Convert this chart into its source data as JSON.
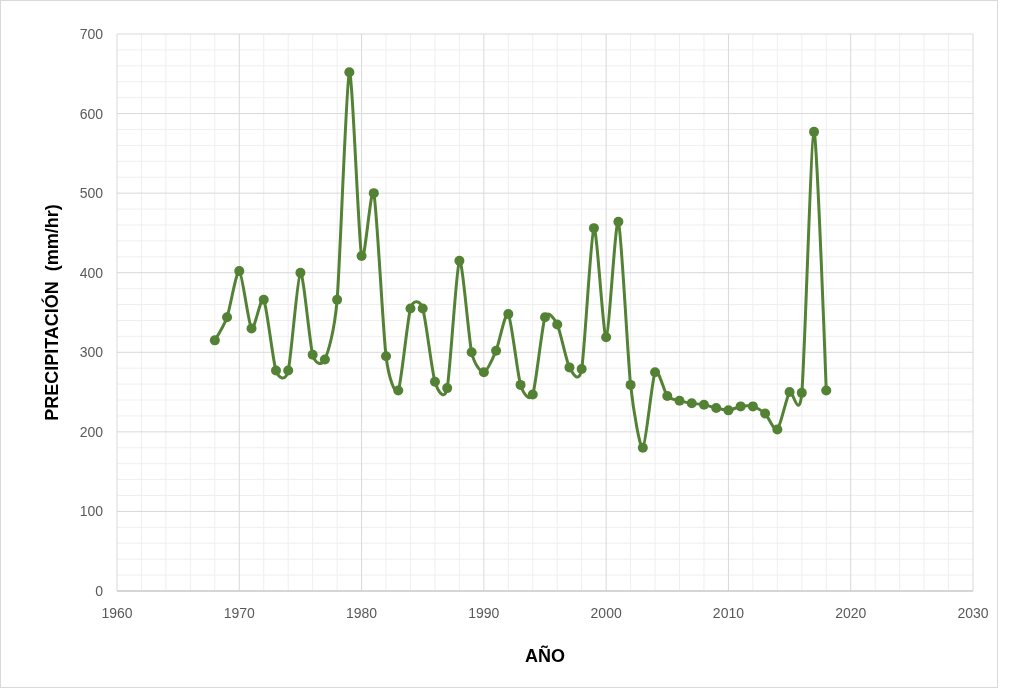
{
  "chart_data": {
    "type": "line",
    "xlabel": "AÑO",
    "ylabel": "PRECIPITACIÓN  (mm/hr)",
    "x": [
      1968,
      1969,
      1970,
      1971,
      1972,
      1973,
      1974,
      1975,
      1976,
      1977,
      1978,
      1979,
      1980,
      1981,
      1982,
      1983,
      1984,
      1985,
      1986,
      1987,
      1988,
      1989,
      1990,
      1991,
      1992,
      1993,
      1994,
      1995,
      1996,
      1997,
      1998,
      1999,
      2000,
      2001,
      2002,
      2003,
      2004,
      2005,
      2006,
      2007,
      2008,
      2009,
      2010,
      2011,
      2012,
      2013,
      2014,
      2015,
      2016,
      2017,
      2018
    ],
    "series": [
      {
        "color": "#548235",
        "values": [
          315,
          344,
          402,
          330,
          366,
          277,
          277,
          400,
          297,
          291,
          366,
          652,
          421,
          500,
          295,
          252,
          355,
          355,
          263,
          255,
          415,
          300,
          275,
          302,
          348,
          259,
          247,
          344,
          335,
          281,
          279,
          456,
          319,
          464,
          259,
          180,
          275,
          245,
          239,
          236,
          234,
          230,
          227,
          232,
          232,
          223,
          203,
          250,
          249,
          577,
          252
        ]
      }
    ],
    "xlim": [
      1960,
      2030
    ],
    "xticks": [
      1960,
      1970,
      1980,
      1990,
      2000,
      2010,
      2020,
      2030
    ],
    "ylim": [
      0,
      700
    ],
    "yticks": [
      0,
      100,
      200,
      300,
      400,
      500,
      600,
      700
    ],
    "grid": true,
    "marker": "circle",
    "line_style": "solid"
  }
}
